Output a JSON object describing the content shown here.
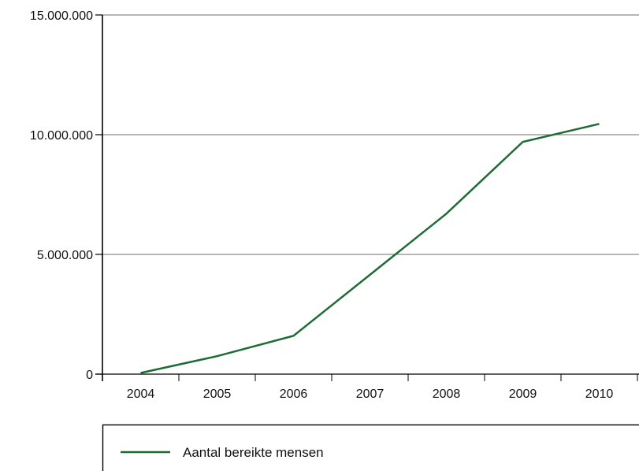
{
  "chart_data": {
    "type": "line",
    "title": "",
    "xlabel": "",
    "ylabel": "",
    "categories": [
      "2004",
      "2005",
      "2006",
      "2007",
      "2008",
      "2009",
      "2010"
    ],
    "x": [
      2004,
      2005,
      2006,
      2007,
      2008,
      2009,
      2010
    ],
    "series": [
      {
        "name": "Aantal bereikte mensen",
        "color": "#1e6b35",
        "values": [
          50000,
          750000,
          1600000,
          4150000,
          6700000,
          9700000,
          10450000
        ]
      }
    ],
    "ylim": [
      0,
      15000000
    ],
    "yticks": [
      0,
      5000000,
      10000000,
      15000000
    ],
    "ytick_labels": [
      "0",
      "5.000.000",
      "10.000.000",
      "15.000.000"
    ],
    "grid": "horizontal",
    "legend_position": "bottom"
  }
}
